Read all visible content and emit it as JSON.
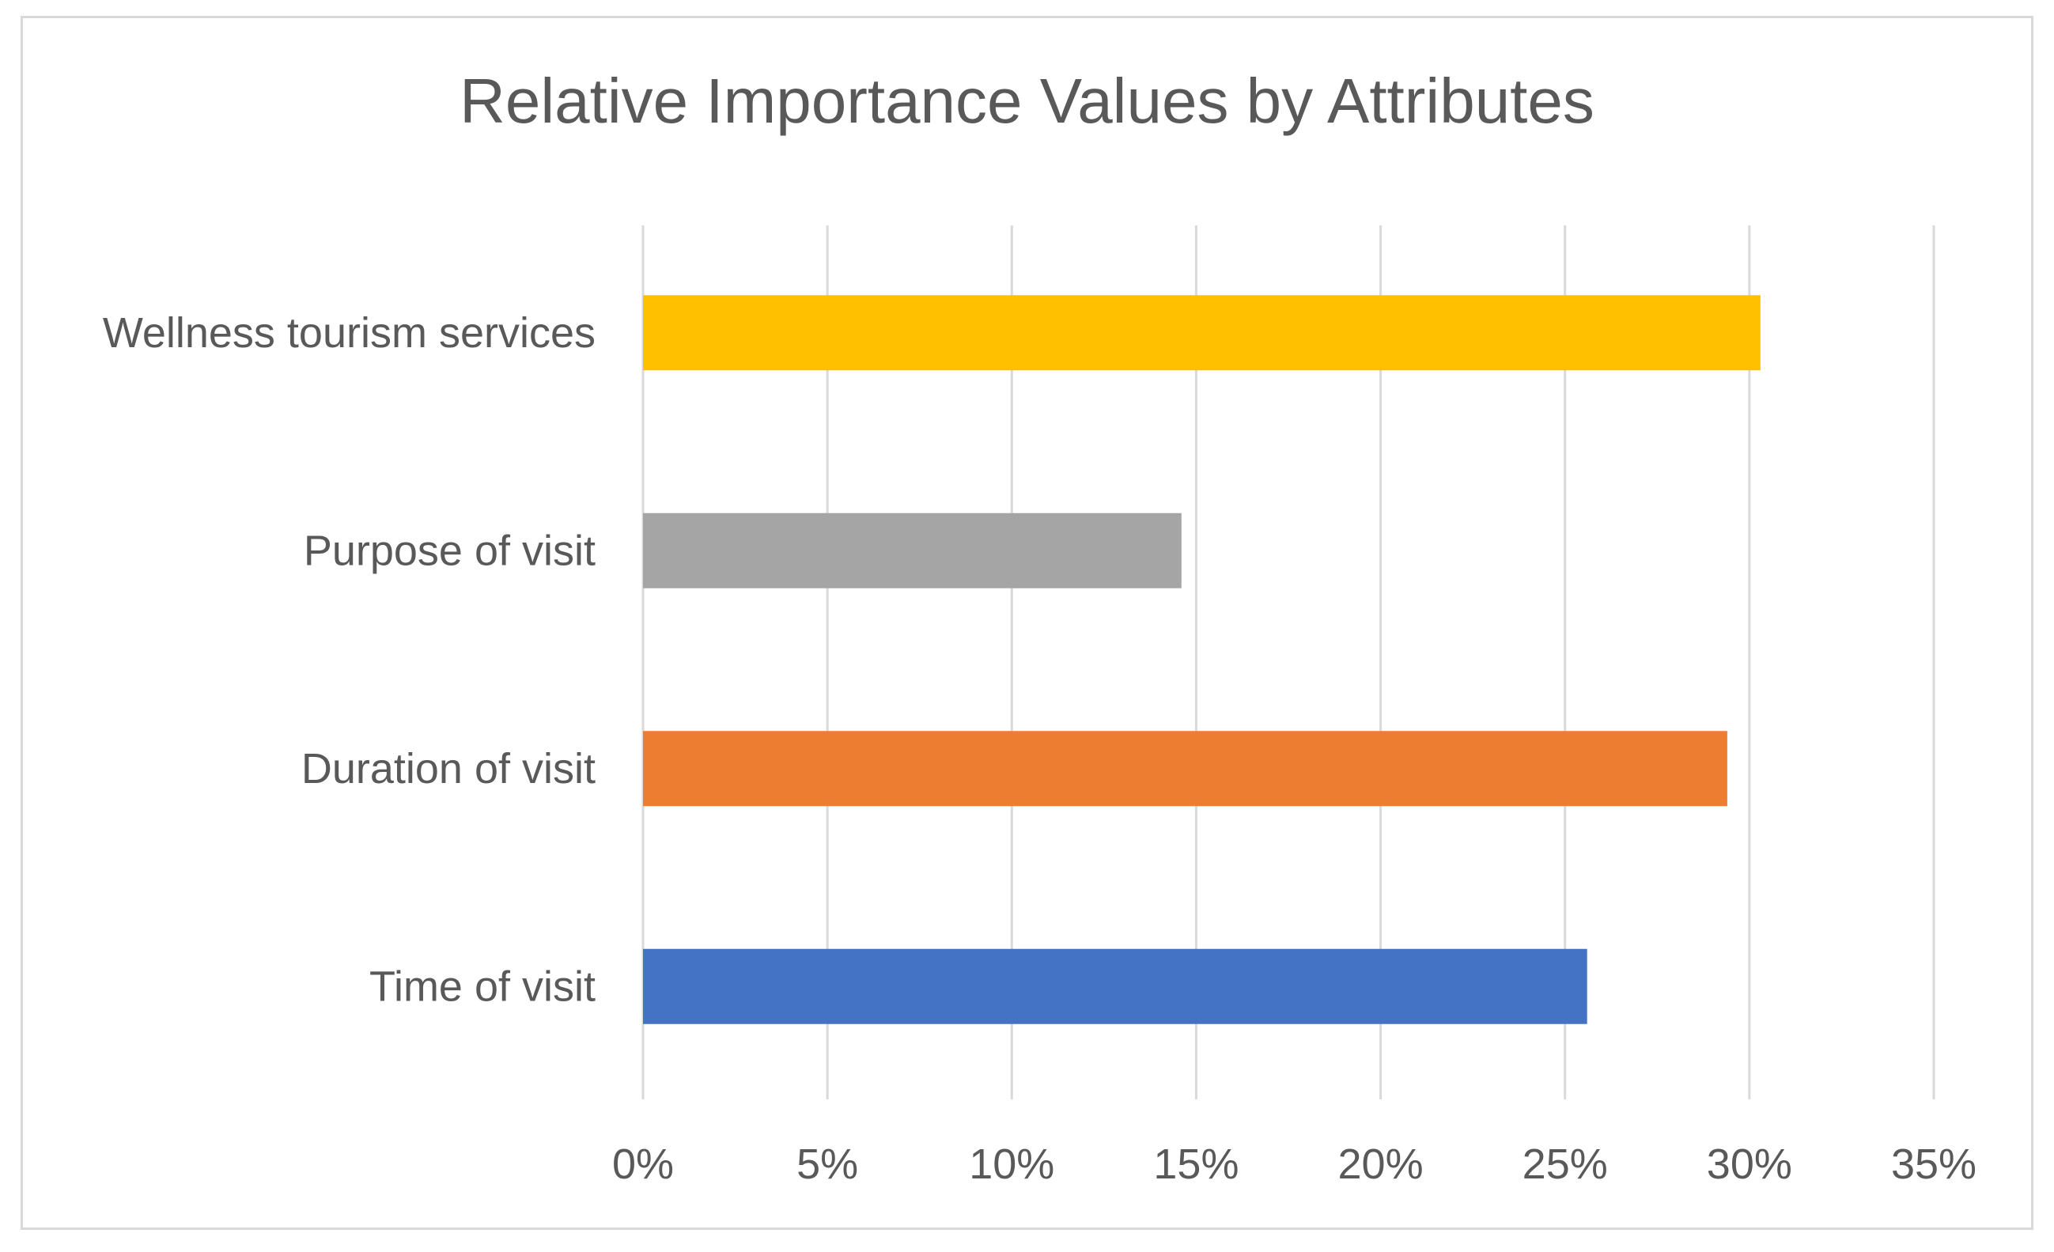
{
  "chart_data": {
    "type": "bar",
    "orientation": "horizontal",
    "title": "Relative Importance Values by Attributes",
    "xlabel": "",
    "ylabel": "",
    "categories": [
      "Time of visit",
      "Duration of visit",
      "Purpose of visit",
      "Wellness tourism services"
    ],
    "values": [
      25.6,
      29.4,
      14.6,
      30.3
    ],
    "bar_colors": [
      "#4472C4",
      "#ED7D31",
      "#A5A5A5",
      "#FFC000"
    ],
    "xlim": [
      0,
      35
    ],
    "x_ticks": [
      0,
      5,
      10,
      15,
      20,
      25,
      30,
      35
    ],
    "tick_format": "{v}%",
    "grid": "vertical",
    "legend": "none"
  }
}
